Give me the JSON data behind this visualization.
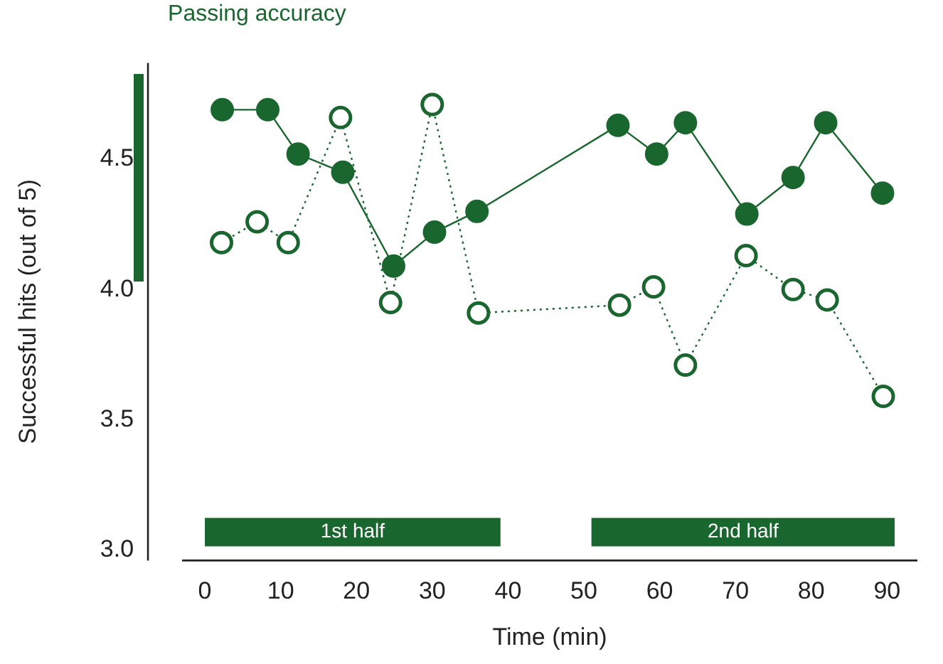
{
  "chart_data": {
    "type": "line",
    "xlabel": "Time (min)",
    "ylabel": "Successful hits (out of 5)",
    "xlim": [
      -3,
      94
    ],
    "ylim": [
      2.96,
      4.87
    ],
    "xticks": [
      0,
      10,
      20,
      30,
      40,
      50,
      60,
      70,
      80,
      90
    ],
    "yticks": [
      {
        "value": 3,
        "label": "3.0"
      },
      {
        "value": 3.5,
        "label": "3.5"
      },
      {
        "value": 4,
        "label": "4.0"
      },
      {
        "value": 4.5,
        "label": "4.5"
      }
    ],
    "grid": false,
    "legend": false,
    "marker": "circle",
    "series": [
      {
        "color": "#19662e",
        "line_style": "solid",
        "x": [
          2.3,
          8.3,
          12.3,
          18.2,
          24.9,
          30.3,
          35.9,
          54.5,
          59.6,
          63.4,
          71.5,
          77.6,
          81.9,
          89.4
        ],
        "values": [
          4.69,
          4.69,
          4.52,
          4.45,
          4.09,
          4.22,
          4.3,
          4.63,
          4.52,
          4.64,
          4.29,
          4.43,
          4.64,
          4.37
        ]
      },
      {
        "color": "#19662e",
        "line_style": "dotted",
        "x": [
          2.2,
          6.9,
          11.0,
          17.9,
          24.5,
          30.0,
          36.1,
          54.7,
          59.2,
          63.4,
          71.4,
          77.6,
          82.1,
          89.5
        ],
        "values": [
          4.18,
          4.26,
          4.18,
          4.66,
          3.95,
          4.71,
          3.91,
          3.94,
          4.01,
          3.71,
          4.13,
          4.0,
          3.96,
          3.59
        ]
      }
    ],
    "annotations": [
      "Passing accuracy"
    ],
    "bands": [
      {
        "axis": "x",
        "from": 0,
        "to": 39,
        "label": "1st half",
        "color": "#19662e"
      },
      {
        "axis": "x",
        "from": 51,
        "to": 91,
        "label": "2nd half",
        "color": "#19662e"
      }
    ]
  }
}
